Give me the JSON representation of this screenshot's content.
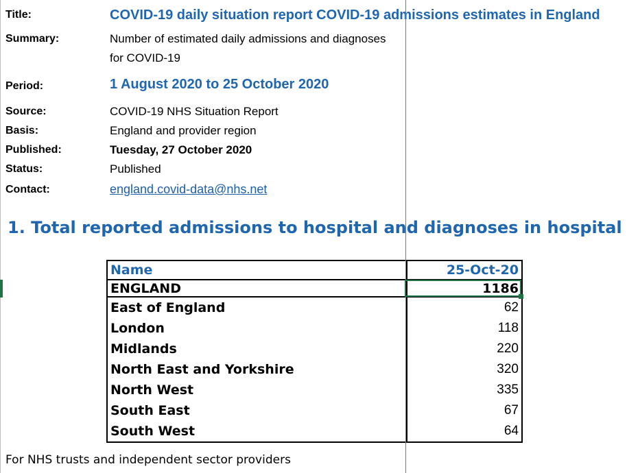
{
  "meta": {
    "title_label": "Title:",
    "title_value": "COVID-19 daily situation report COVID-19 admissions estimates in England",
    "summary_label": "Summary:",
    "summary_line1": "Number of estimated daily admissions and diagnoses",
    "summary_line2": "for COVID-19",
    "period_label": "Period:",
    "period_value": "1 August 2020 to 25 October 2020",
    "source_label": "Source:",
    "source_value": "COVID-19 NHS Situation Report",
    "basis_label": "Basis:",
    "basis_value": "England and provider region",
    "published_label": "Published:",
    "published_value": "Tuesday, 27 October 2020",
    "status_label": "Status:",
    "status_value": "Published",
    "contact_label": "Contact:",
    "contact_value": "england.covid-data@nhs.net"
  },
  "section": {
    "heading": "1. Total reported admissions to hospital and diagnoses in hospital"
  },
  "table": {
    "header_name": "Name",
    "header_date": "25-Oct-20",
    "rows": [
      {
        "name": "ENGLAND",
        "value": "1186"
      },
      {
        "name": "East of England",
        "value": "62"
      },
      {
        "name": "London",
        "value": "118"
      },
      {
        "name": "Midlands",
        "value": "220"
      },
      {
        "name": "North East and Yorkshire",
        "value": "320"
      },
      {
        "name": "North West",
        "value": "335"
      },
      {
        "name": "South East",
        "value": "67"
      },
      {
        "name": "South West",
        "value": "64"
      }
    ]
  },
  "footnote": "For NHS trusts and independent sector providers",
  "colors": {
    "accent_blue": "#1f66b0",
    "selection_green": "#217346"
  }
}
